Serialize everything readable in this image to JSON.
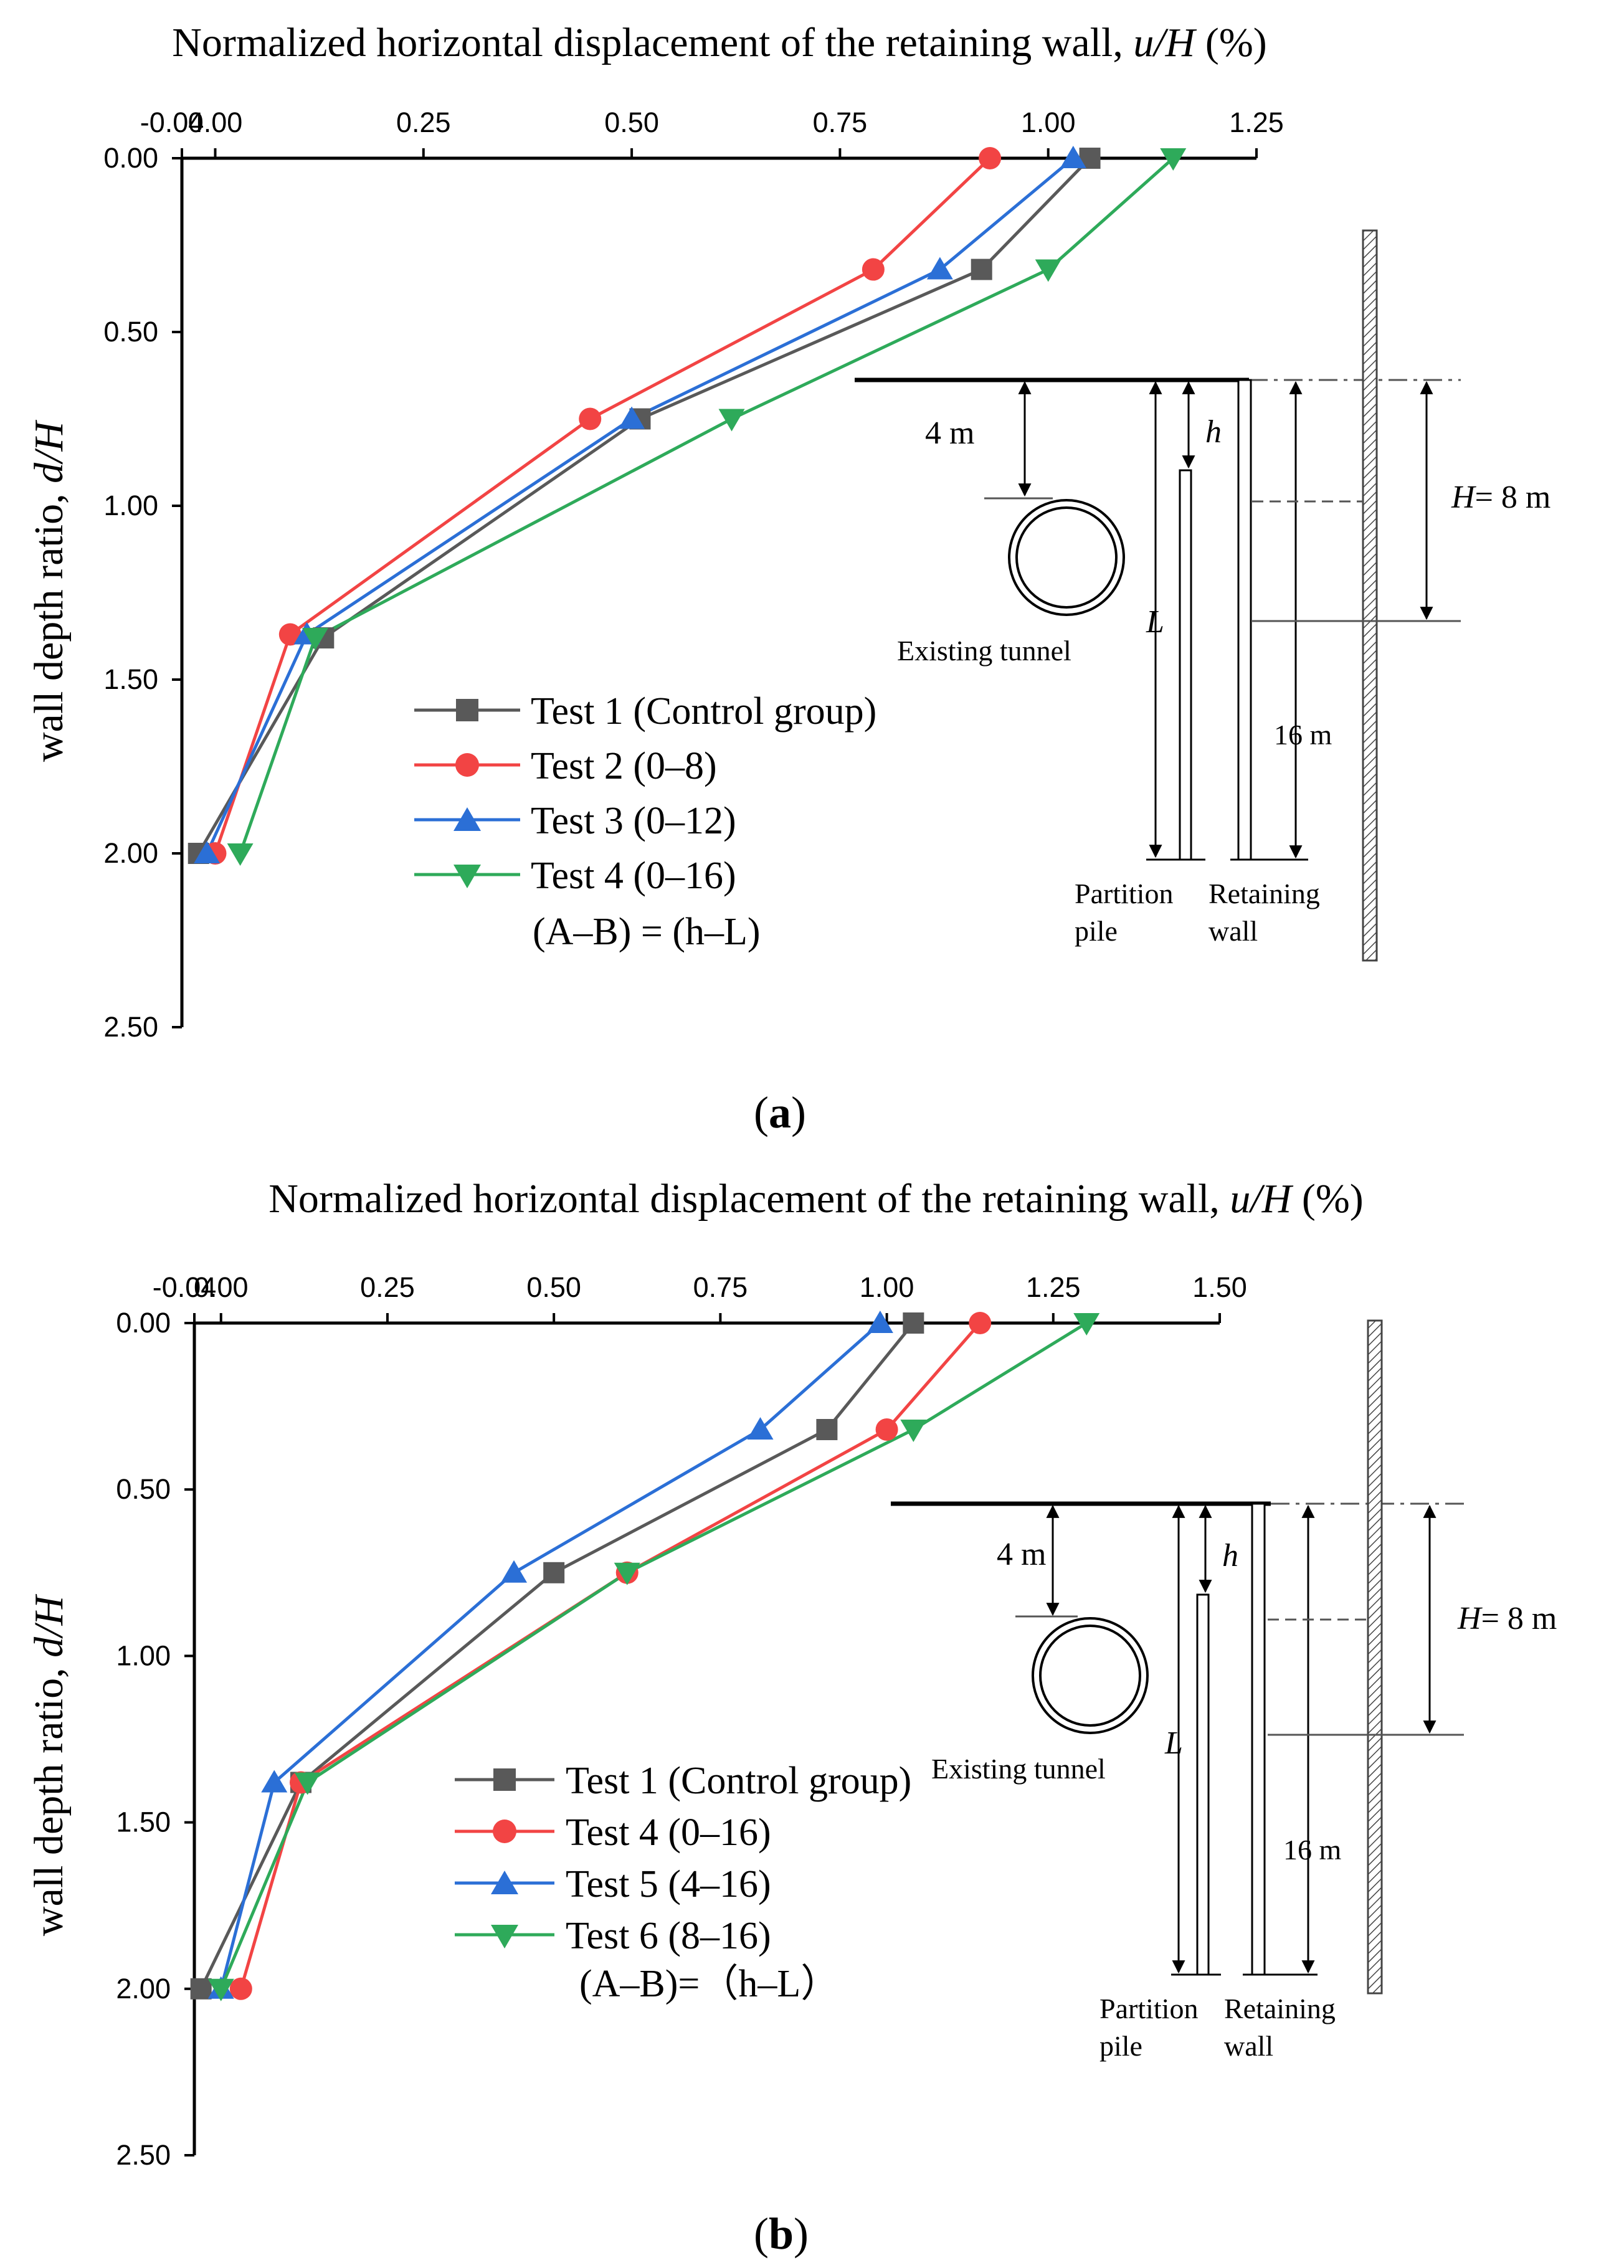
{
  "colors": {
    "test1": "#595959",
    "test2": "#f24444",
    "test3": "#2b6fd6",
    "test4_a": "#2eaa5a",
    "test4_b": "#f24444",
    "test5": "#2b6fd6",
    "test6": "#2eaa5a",
    "axis": "#000000"
  },
  "chart_data": [
    {
      "type": "line",
      "panel": "a",
      "caption_letter": "a",
      "title": "Normalized horizontal displacement of the retaining wall,",
      "title_var": "u/H",
      "title_unit": " (%)",
      "xlabel_position": "top",
      "ylabel": "wall depth ratio,",
      "ylabel_var": "d/H",
      "xlim": [
        -0.04,
        1.25
      ],
      "ylim": [
        0,
        2.5
      ],
      "y_inverted": true,
      "x_ticks": [
        -0.04,
        0.0,
        0.25,
        0.5,
        0.75,
        1.0,
        1.25
      ],
      "x_tick_labels": [
        "-0.04",
        "0.00",
        "0.25",
        "0.50",
        "0.75",
        "1.00",
        "1.25"
      ],
      "y_ticks": [
        0.0,
        0.5,
        1.0,
        1.5,
        2.0,
        2.5
      ],
      "y_tick_labels": [
        "0.00",
        "0.50",
        "1.00",
        "1.50",
        "2.00",
        "2.50"
      ],
      "series": [
        {
          "name": "Test 1 (Control group)",
          "marker": "square",
          "color_key": "test1",
          "x": [
            1.05,
            0.92,
            0.51,
            0.13,
            -0.02
          ],
          "y": [
            0.0,
            0.32,
            0.75,
            1.38,
            2.0
          ]
        },
        {
          "name": "Test 2 (0–8)",
          "marker": "circle",
          "color_key": "test2",
          "x": [
            0.93,
            0.79,
            0.45,
            0.09,
            0.0
          ],
          "y": [
            0.0,
            0.32,
            0.75,
            1.37,
            2.0
          ]
        },
        {
          "name": "Test 3 (0–12)",
          "marker": "triangle-up",
          "color_key": "test3",
          "x": [
            1.03,
            0.87,
            0.5,
            0.11,
            -0.01
          ],
          "y": [
            0.0,
            0.32,
            0.75,
            1.37,
            2.0
          ]
        },
        {
          "name": "Test 4 (0–16)",
          "marker": "triangle-down",
          "color_key": "test4_a",
          "x": [
            1.15,
            1.0,
            0.62,
            0.12,
            0.03
          ],
          "y": [
            0.0,
            0.32,
            0.75,
            1.38,
            2.0
          ]
        }
      ],
      "legend_note": "(A–B) = (h–L)"
    },
    {
      "type": "line",
      "panel": "b",
      "caption_letter": "b",
      "title": "Normalized horizontal displacement of the retaining wall,",
      "title_var": "u/H",
      "title_unit": " (%)",
      "xlabel_position": "top",
      "ylabel": "wall depth ratio,",
      "ylabel_var": "d/H",
      "xlim": [
        -0.04,
        1.5
      ],
      "ylim": [
        0,
        2.5
      ],
      "y_inverted": true,
      "x_ticks": [
        -0.04,
        0.0,
        0.25,
        0.5,
        0.75,
        1.0,
        1.25,
        1.5
      ],
      "x_tick_labels": [
        "-0.04",
        "0.00",
        "0.25",
        "0.50",
        "0.75",
        "1.00",
        "1.25",
        "1.50"
      ],
      "y_ticks": [
        0.0,
        0.5,
        1.0,
        1.5,
        2.0,
        2.5
      ],
      "y_tick_labels": [
        "0.00",
        "0.50",
        "1.00",
        "1.50",
        "2.00",
        "2.50"
      ],
      "series": [
        {
          "name": "Test 1 (Control group)",
          "marker": "square",
          "color_key": "test1",
          "x": [
            1.04,
            0.91,
            0.5,
            0.12,
            -0.03
          ],
          "y": [
            0.0,
            0.32,
            0.75,
            1.38,
            2.0
          ]
        },
        {
          "name": "Test 4 (0–16)",
          "marker": "circle",
          "color_key": "test4_b",
          "x": [
            1.14,
            1.0,
            0.61,
            0.12,
            0.03
          ],
          "y": [
            0.0,
            0.32,
            0.75,
            1.38,
            2.0
          ]
        },
        {
          "name": "Test 5 (4–16)",
          "marker": "triangle-up",
          "color_key": "test5",
          "x": [
            0.99,
            0.81,
            0.44,
            0.08,
            0.0
          ],
          "y": [
            0.0,
            0.32,
            0.75,
            1.38,
            2.0
          ]
        },
        {
          "name": "Test 6 (8–16)",
          "marker": "triangle-down",
          "color_key": "test6",
          "x": [
            1.3,
            1.04,
            0.61,
            0.13,
            0.0
          ],
          "y": [
            0.0,
            0.32,
            0.75,
            1.38,
            2.0
          ]
        }
      ],
      "legend_note": "(A–B)=（h–L）"
    }
  ],
  "schematic": {
    "depth_4m": "4 m",
    "h": "h",
    "L": "L",
    "H_label": "H",
    "H_value": "= 8 m",
    "depth_16m": "16 m",
    "tunnel": "Existing tunnel",
    "partition_pile_line1": "Partition",
    "partition_pile_line2": "pile",
    "retaining_wall_line1": "Retaining",
    "retaining_wall_line2": "wall"
  }
}
